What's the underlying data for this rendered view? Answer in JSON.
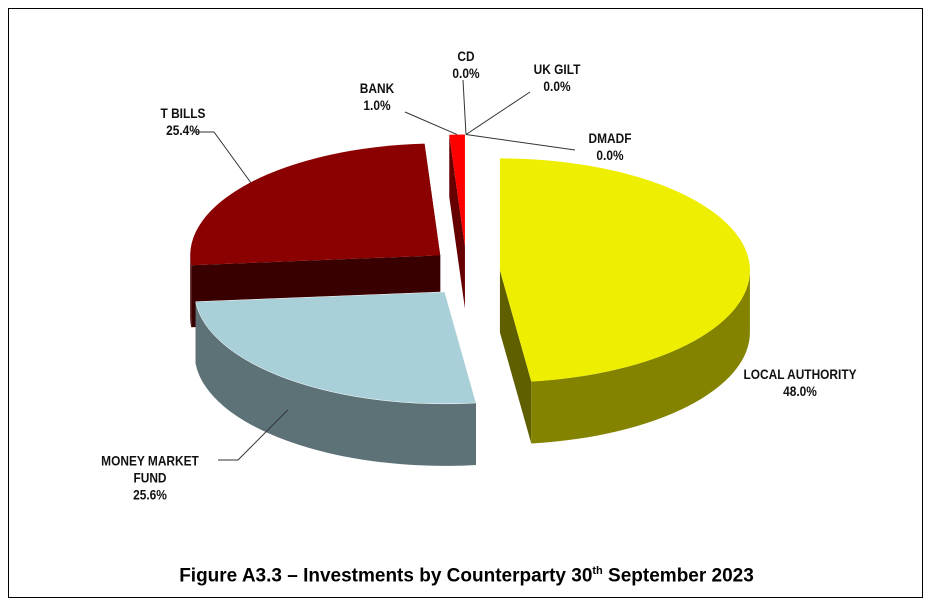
{
  "chart_data": {
    "type": "pie3d",
    "categories": [
      "LOCAL AUTHORITY",
      "MONEY MARKET FUND",
      "T BILLS",
      "BANK",
      "CD",
      "UK GILT",
      "DMADF"
    ],
    "values": [
      48.0,
      25.6,
      25.4,
      1.0,
      0.0,
      0.0,
      0.0
    ],
    "value_labels": [
      "48.0%",
      "25.6%",
      "25.4%",
      "1.0%",
      "0.0%",
      "0.0%",
      "0.0%"
    ],
    "colors": [
      "#eeee00",
      "#a9cfd9",
      "#8b0000",
      "#ff0000",
      "#999999",
      "#4f8a3a",
      "#3b6bb0"
    ],
    "caption": [
      "Figure A3.3 – Investments by Counterparty 30",
      "th",
      " September 2023"
    ]
  }
}
